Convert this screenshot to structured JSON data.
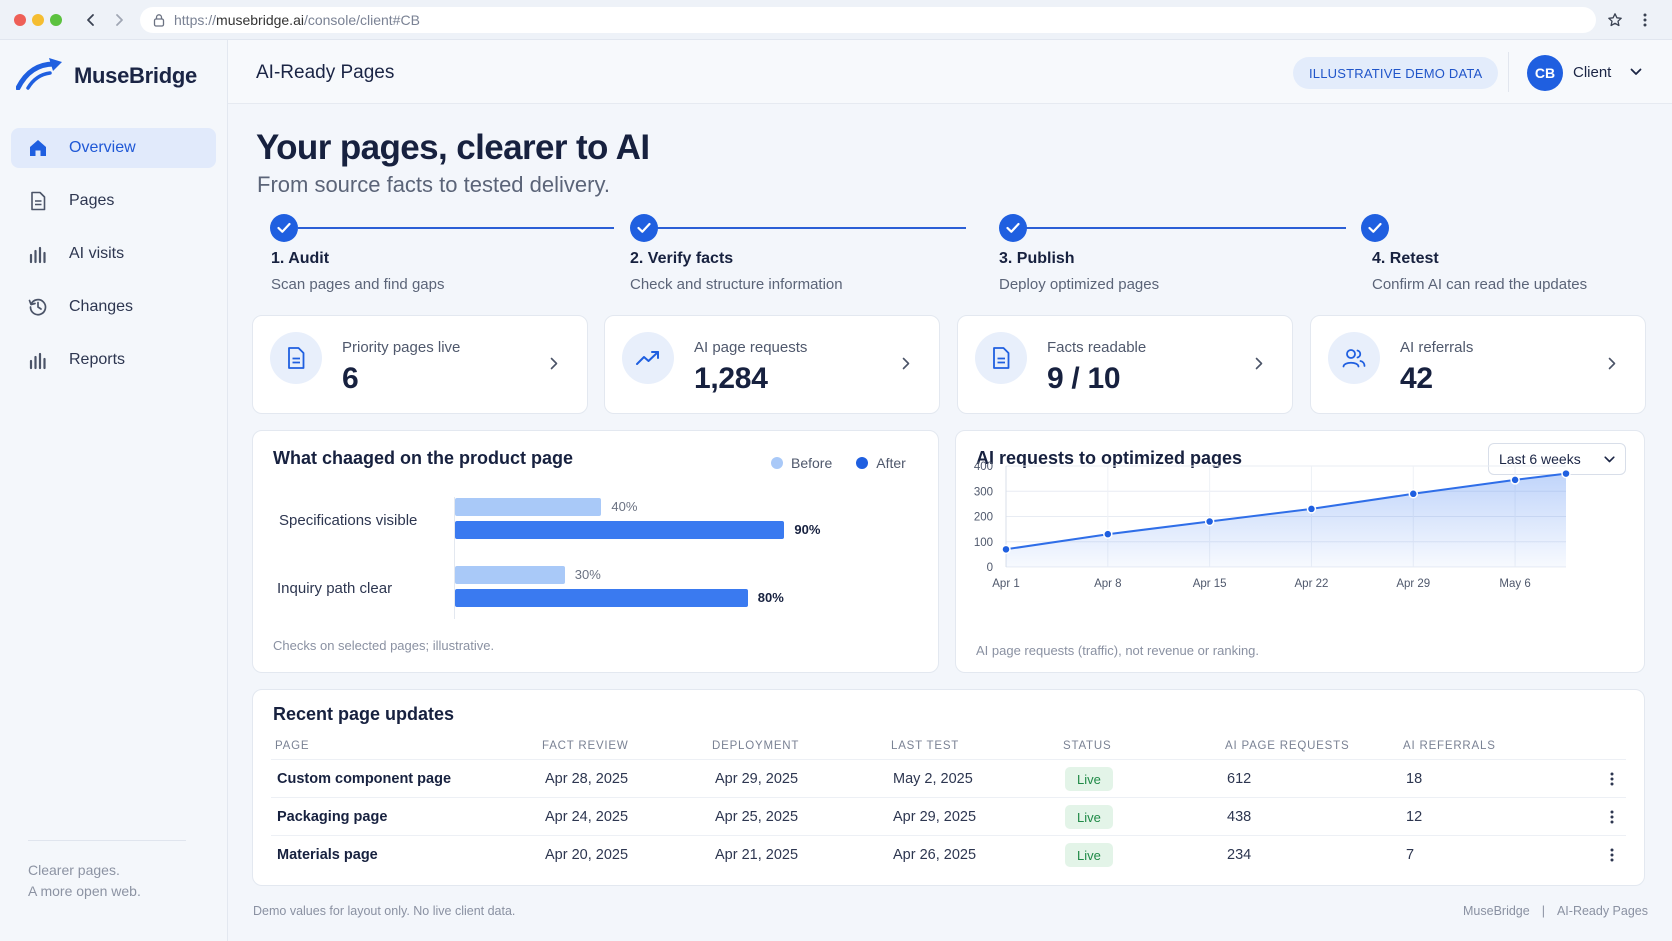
{
  "browser": {
    "url_prefix": "https://",
    "url_host": "musebridge.ai",
    "url_path": "/console/client#CB"
  },
  "brand": {
    "name": "MuseBridge"
  },
  "sidebar": {
    "items": [
      {
        "label": "Overview",
        "icon": "home-icon",
        "active": true
      },
      {
        "label": "Pages",
        "icon": "document-icon"
      },
      {
        "label": "AI visits",
        "icon": "bar-chart-icon"
      },
      {
        "label": "Changes",
        "icon": "history-icon"
      },
      {
        "label": "Reports",
        "icon": "bar-chart-icon"
      }
    ],
    "footer_line1": "Clearer pages.",
    "footer_line2": "A more open web."
  },
  "header": {
    "title": "AI-Ready Pages",
    "badge": "ILLUSTRATIVE DEMO DATA",
    "avatar_initials": "CB",
    "user": "Client"
  },
  "hero": {
    "title": "Your pages, clearer to AI",
    "subtitle": "From source facts to tested delivery."
  },
  "steps": [
    {
      "title": "1. Audit",
      "desc": "Scan pages and find gaps",
      "done": true
    },
    {
      "title": "2. Verify facts",
      "desc": "Check and structure information",
      "done": true
    },
    {
      "title": "3. Publish",
      "desc": "Deploy optimized pages",
      "done": true
    },
    {
      "title": "4. Retest",
      "desc": "Confirm AI can read the updates",
      "done": true
    }
  ],
  "kpis": [
    {
      "label": "Priority pages live",
      "value": "6",
      "icon": "document-icon"
    },
    {
      "label": "AI page requests",
      "value": "1,284",
      "icon": "trend-up-icon"
    },
    {
      "label": "Facts readable",
      "value": "9 / 10",
      "icon": "document-icon"
    },
    {
      "label": "AI referrals",
      "value": "42",
      "icon": "users-icon"
    }
  ],
  "colors": {
    "accent": "#1f5fe0",
    "before": "#a9c9f8",
    "after": "#3a7af0",
    "live_bg": "#e3f4e8",
    "live_text": "#1f8a47"
  },
  "chart_data": [
    {
      "type": "bar",
      "title": "What chaaged on the product page",
      "orientation": "horizontal",
      "categories": [
        "Specifications visible",
        "Inquiry path clear"
      ],
      "series": [
        {
          "name": "Before",
          "values": [
            40,
            30
          ],
          "labels": [
            "40%",
            "30%"
          ]
        },
        {
          "name": "After",
          "values": [
            90,
            80
          ],
          "labels": [
            "90%",
            "80%"
          ]
        }
      ],
      "unit": "%",
      "xlim": [
        0,
        100
      ],
      "legend": "top-right",
      "note": "Checks on selected pages; illustrative."
    },
    {
      "type": "area",
      "title": "AI requests to optimized pages",
      "range_option": "Last 6 weeks",
      "x": [
        "Apr 1",
        "Apr 8",
        "Apr 15",
        "Apr 22",
        "Apr 29",
        "May 6",
        "May 10"
      ],
      "x_tick_labels": [
        "Apr 1",
        "Apr 8",
        "Apr 15",
        "Apr 22",
        "Apr 29",
        "May 6"
      ],
      "series": [
        {
          "values": [
            70,
            130,
            180,
            230,
            290,
            345,
            370
          ]
        }
      ],
      "ylim": [
        0,
        400
      ],
      "yticks": [
        "0",
        "100",
        "200",
        "300",
        "400"
      ],
      "grid": true,
      "note": "AI page requests (traffic), not revenue or ranking."
    }
  ],
  "table": {
    "title": "Recent page updates",
    "columns": [
      "PAGE",
      "FACT REVIEW",
      "DEPLOYMENT",
      "LAST TEST",
      "STATUS",
      "AI PAGE REQUESTS",
      "AI REFERRALS"
    ],
    "rows": [
      {
        "page": "Custom component page",
        "fact_review": "Apr 28, 2025",
        "deployment": "Apr 29, 2025",
        "last_test": "May 2, 2025",
        "status": "Live",
        "requests": "612",
        "referrals": "18"
      },
      {
        "page": "Packaging page",
        "fact_review": "Apr 24, 2025",
        "deployment": "Apr 25, 2025",
        "last_test": "Apr 29, 2025",
        "status": "Live",
        "requests": "438",
        "referrals": "12"
      },
      {
        "page": "Materials page",
        "fact_review": "Apr 20, 2025",
        "deployment": "Apr 21, 2025",
        "last_test": "Apr 26, 2025",
        "status": "Live",
        "requests": "234",
        "referrals": "7"
      }
    ]
  },
  "footer": {
    "left": "Demo values for layout only. No live client data.",
    "right_brand": "MuseBridge",
    "right_sep": "|",
    "right_product": "AI-Ready Pages"
  }
}
